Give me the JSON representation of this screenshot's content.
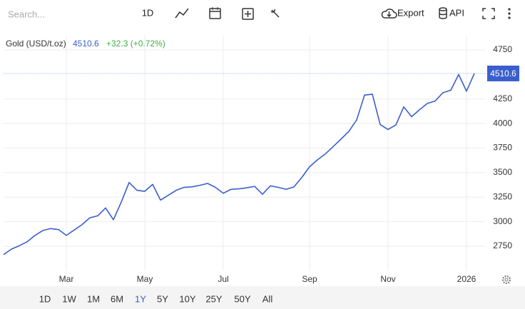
{
  "toolbar": {
    "search_placeholder": "Search...",
    "interval": "1D",
    "export": "Export",
    "api": "API"
  },
  "chart_data": {
    "type": "line",
    "title": "Gold (USD/t.oz)",
    "change": "+32.3 (+0.72%)",
    "categories": [
      null,
      null,
      null,
      null,
      null,
      null,
      null,
      null,
      "Mar",
      null,
      null,
      null,
      null,
      null,
      null,
      null,
      null,
      null,
      "May",
      null,
      null,
      null,
      null,
      null,
      null,
      null,
      null,
      null,
      "Jul",
      null,
      null,
      null,
      null,
      null,
      null,
      null,
      null,
      null,
      null,
      "Sep",
      null,
      null,
      null,
      null,
      null,
      null,
      null,
      null,
      null,
      "Nov",
      null,
      null,
      null,
      null,
      null,
      null,
      null,
      null,
      null,
      "2026",
      null
    ],
    "series": [
      {
        "name": "Gold",
        "color": "#3a5fcd",
        "values": [
          2665,
          2720,
          2755,
          2795,
          2860,
          2910,
          2930,
          2920,
          2860,
          2915,
          2970,
          3040,
          3060,
          3140,
          3020,
          3200,
          3400,
          3320,
          3310,
          3380,
          3220,
          3270,
          3320,
          3350,
          3355,
          3370,
          3390,
          3350,
          3290,
          3330,
          3335,
          3345,
          3360,
          3280,
          3365,
          3350,
          3330,
          3354,
          3450,
          3560,
          3630,
          3690,
          3765,
          3841,
          3920,
          4037,
          4290,
          4300,
          3990,
          3940,
          3986,
          4170,
          4070,
          4140,
          4205,
          4230,
          4315,
          4340,
          4500,
          4330,
          4510.6
        ]
      }
    ],
    "ylim": [
      2500,
      4900
    ],
    "yticks": [
      2750,
      3000,
      3250,
      3500,
      3750,
      4000,
      4250,
      4750
    ],
    "grid": true,
    "change_color": "#3cb043"
  },
  "ranges": {
    "items": [
      "1D",
      "1W",
      "1M",
      "6M",
      "1Y",
      "5Y",
      "10Y",
      "25Y",
      "50Y",
      "All"
    ],
    "active": "1Y"
  }
}
